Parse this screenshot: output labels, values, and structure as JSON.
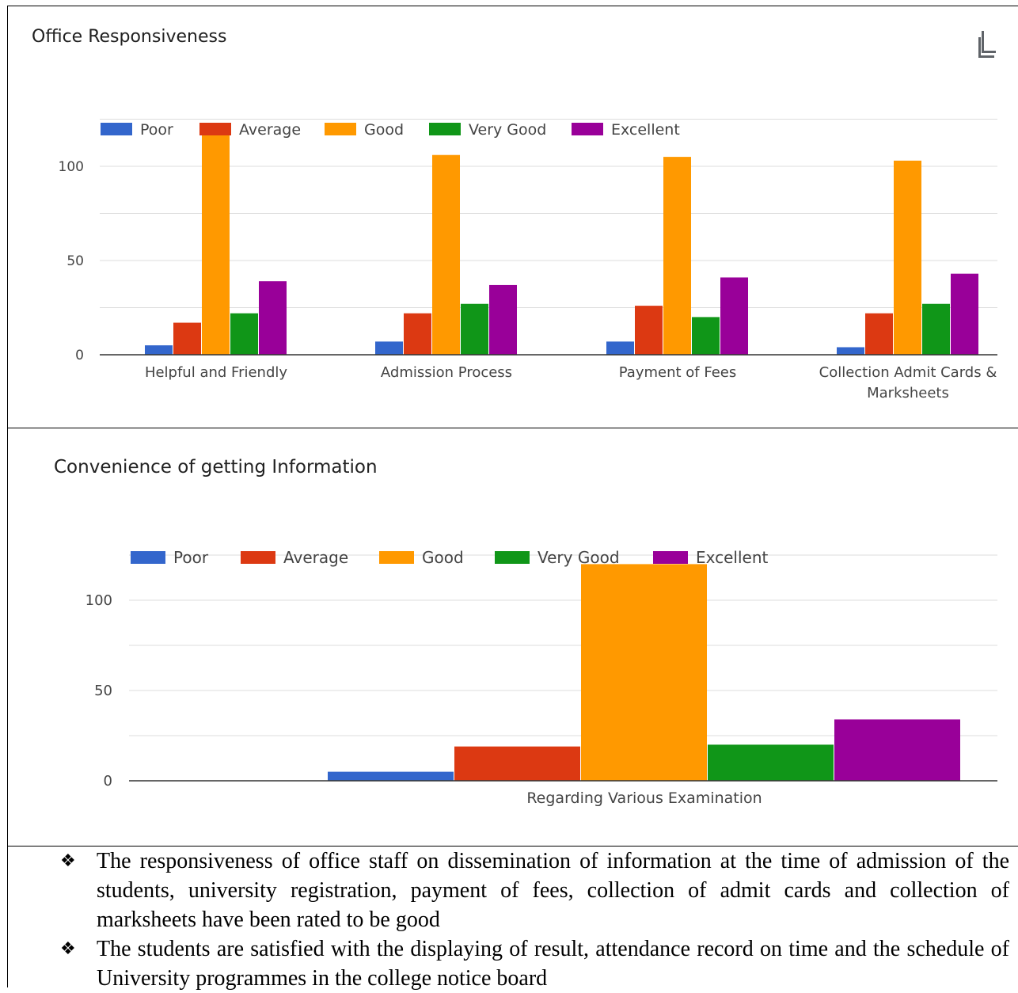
{
  "charts_text": {
    "chart1_title": "Office Responsiveness",
    "chart2_title": "Convenience of getting Information"
  },
  "icons": {
    "copy": "copy-icon"
  },
  "colors": {
    "Poor": "#3366cc",
    "Average": "#dc3912",
    "Good": "#ff9900",
    "Very Good": "#109618",
    "Excellent": "#990099",
    "grid": "#dddddd",
    "baseline": "#333333",
    "axis_text": "#444444"
  },
  "chart_data": [
    {
      "type": "bar",
      "title": "Office Responsiveness",
      "categories": [
        "Helpful and Friendly",
        "Admission Process",
        "Payment of Fees",
        "Collection Admit Cards & Marksheets"
      ],
      "series": [
        {
          "name": "Poor",
          "values": [
            5,
            7,
            7,
            4
          ]
        },
        {
          "name": "Average",
          "values": [
            17,
            22,
            26,
            22
          ]
        },
        {
          "name": "Good",
          "values": [
            117,
            106,
            105,
            103
          ]
        },
        {
          "name": "Very Good",
          "values": [
            22,
            27,
            20,
            27
          ]
        },
        {
          "name": "Excellent",
          "values": [
            39,
            37,
            41,
            43
          ]
        }
      ],
      "ylim": [
        0,
        125
      ],
      "yticks": [
        0,
        50,
        100
      ],
      "grid": true,
      "legend": "top"
    },
    {
      "type": "bar",
      "title": "Convenience of getting Information",
      "categories": [
        "Regarding Various Examination"
      ],
      "series": [
        {
          "name": "Poor",
          "values": [
            5
          ]
        },
        {
          "name": "Average",
          "values": [
            19
          ]
        },
        {
          "name": "Good",
          "values": [
            120
          ]
        },
        {
          "name": "Very Good",
          "values": [
            20
          ]
        },
        {
          "name": "Excellent",
          "values": [
            34
          ]
        }
      ],
      "ylim": [
        0,
        125
      ],
      "yticks": [
        0,
        50,
        100
      ],
      "grid": true,
      "legend": "top"
    }
  ],
  "bullets": [
    "The responsiveness of office staff on dissemination of information at the time of admission of the students, university registration, payment of fees, collection of admit cards and collection of marksheets have been rated to be good",
    "The students are satisfied with the displaying of result, attendance record on time and the schedule of University  programmes in the college notice board"
  ],
  "bullet_symbol": "❖"
}
